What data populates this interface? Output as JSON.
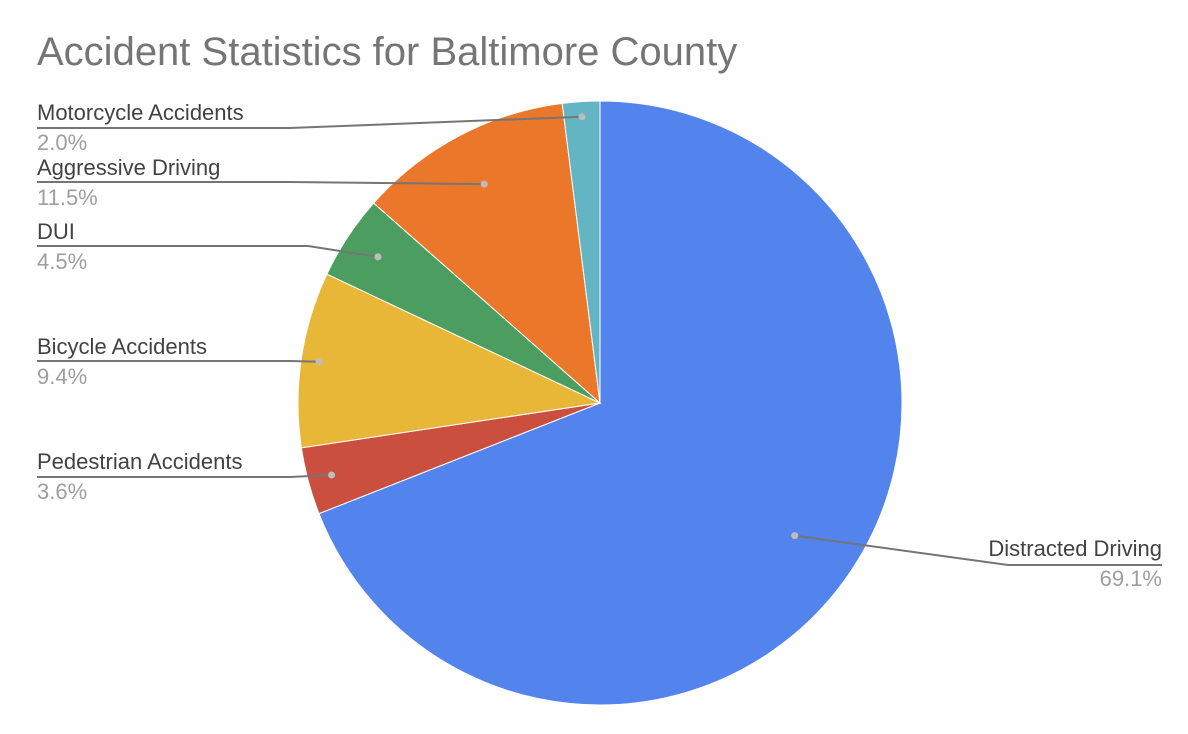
{
  "chart_data": {
    "type": "pie",
    "title": "Accident Statistics for Baltimore County",
    "slices": [
      {
        "label": "Distracted Driving",
        "value": 69.1,
        "percent_label": "69.1%",
        "color": "#5383ec"
      },
      {
        "label": "Pedestrian Accidents",
        "value": 3.6,
        "percent_label": "3.6%",
        "color": "#cb4f3e"
      },
      {
        "label": "Bicycle Accidents",
        "value": 9.4,
        "percent_label": "9.4%",
        "color": "#e9b737"
      },
      {
        "label": "DUI",
        "value": 4.5,
        "percent_label": "4.5%",
        "color": "#4b9e5f"
      },
      {
        "label": "Aggressive Driving",
        "value": 11.5,
        "percent_label": "11.5%",
        "color": "#eb772a"
      },
      {
        "label": "Motorcycle Accidents",
        "value": 2.0,
        "percent_label": "2.0%",
        "color": "#64b5c4"
      }
    ],
    "start_angle": "12 o'clock",
    "direction": "clockwise",
    "labels": "outside with leader lines"
  }
}
